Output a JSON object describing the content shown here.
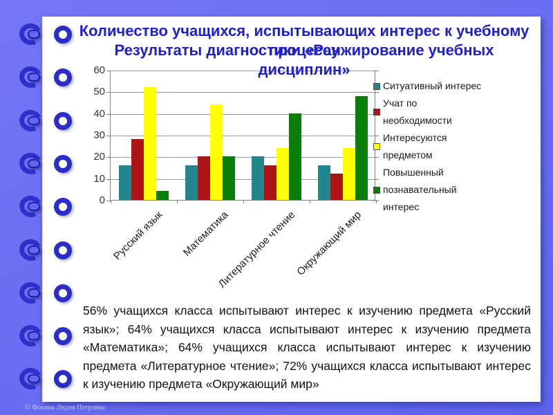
{
  "slide": {
    "titles": {
      "primary": "Количество учащихся, испытывающих интерес к учебному процессу",
      "secondary": "Результаты диагностики «Ранжирование учебных дисциплин»"
    },
    "body_text": "56% учащихся класса испытывают интерес к изучению предмета «Русский язык»; 64% учащихся класса испытывают интерес к изучению предмета «Математика»; 64% учащихся класса испытывают интерес к изучению предмета «Литературное чтение»; 72% учащихся класса испытывают интерес к изучению предмета «Окружающий мир»",
    "copyright": "© Фокина Лидия Петровна"
  },
  "chart_data": {
    "type": "bar",
    "title": "",
    "categories": [
      "Русский язык",
      "Математика",
      "Литературное чтение",
      "Окружающий мир"
    ],
    "series": [
      {
        "name": "Ситуативный интерес",
        "color": "#23858e",
        "values": [
          16,
          16,
          20,
          16
        ]
      },
      {
        "name": "Учат по необходимости",
        "color": "#ae1414",
        "values": [
          28,
          20,
          16,
          12
        ]
      },
      {
        "name": "Интересуются предметом",
        "color": "#ffff00",
        "values": [
          52,
          44,
          24,
          24
        ]
      },
      {
        "name": "Повышенный познавательный интерес",
        "color": "#0a7d0a",
        "values": [
          4,
          20,
          40,
          48
        ]
      }
    ],
    "xlabel": "",
    "ylabel": "",
    "ylim": [
      0,
      60
    ],
    "yticks": [
      0,
      10,
      20,
      30,
      40,
      50,
      60
    ],
    "grid": true,
    "legend_position": "right"
  },
  "colors": {
    "frame_background": "#6a6cf2",
    "page_background": "#ffffff",
    "title_text": "#2020cb",
    "axis_text": "#333333",
    "gridline": "#9a9a9a"
  }
}
